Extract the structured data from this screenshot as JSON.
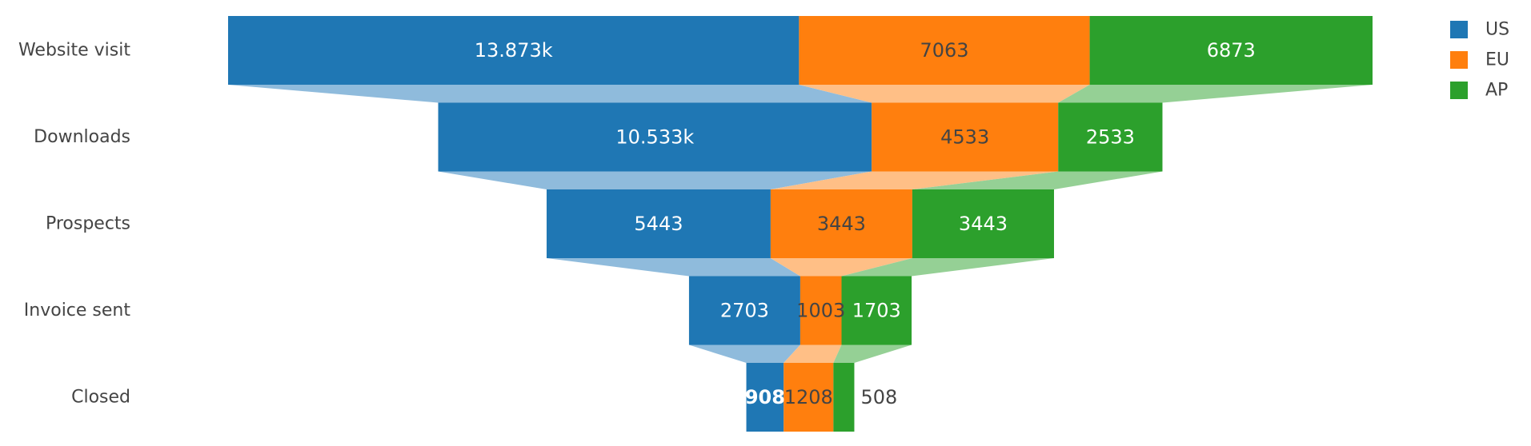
{
  "chart_data": {
    "type": "funnel",
    "categories": [
      "Website visit",
      "Downloads",
      "Prospects",
      "Invoice sent",
      "Closed"
    ],
    "series": [
      {
        "name": "US",
        "values": [
          13873,
          10533,
          5443,
          2703,
          908
        ],
        "labels": [
          "13.873k",
          "10.533k",
          "5443",
          "2703",
          "908"
        ],
        "color": "#1f77b4",
        "connector_color": "#8fbbdc"
      },
      {
        "name": "EU",
        "values": [
          7063,
          4533,
          3443,
          1003,
          1208
        ],
        "labels": [
          "7063",
          "4533",
          "3443",
          "1003",
          "1208"
        ],
        "color": "#ff7f0e",
        "connector_color": "#ffbf86"
      },
      {
        "name": "AP",
        "values": [
          6873,
          2533,
          3443,
          1703,
          508
        ],
        "labels": [
          "6873",
          "2533",
          "3443",
          "1703",
          "508"
        ],
        "color": "#2ca02c",
        "connector_color": "#95d095"
      }
    ],
    "legend_position": "top-right"
  }
}
